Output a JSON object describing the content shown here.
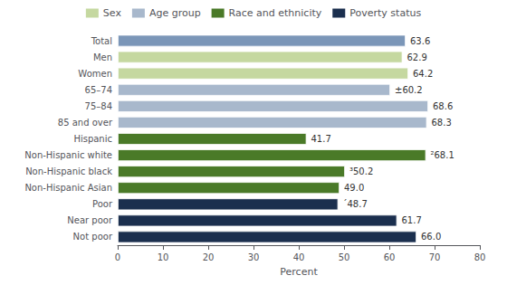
{
  "chart_data": {
    "type": "bar",
    "orientation": "horizontal",
    "categories": [
      "Total",
      "Men",
      "Women",
      "65–74",
      "75–84",
      "85 and over",
      "Hispanic",
      "Non-Hispanic white",
      "Non-Hispanic black",
      "Non-Hispanic Asian",
      "Poor",
      "Near poor",
      "Not poor"
    ],
    "values": [
      63.6,
      62.9,
      64.2,
      60.2,
      68.6,
      68.3,
      41.7,
      68.1,
      50.2,
      49.0,
      48.7,
      61.7,
      66.0
    ],
    "value_labels": [
      "63.6",
      "62.9",
      "64.2",
      "±60.2",
      "68.6",
      "68.3",
      "41.7",
      "²68.1",
      "³50.2",
      "49.0",
      "´48.7",
      "61.7",
      "66.0"
    ],
    "data_labels": true,
    "colors": [
      "#7b96b8",
      "#c5d8a0",
      "#c5d8a0",
      "#a8b8cc",
      "#a8b8cc",
      "#a8b8cc",
      "#4a7a28",
      "#4a7a28",
      "#4a7a28",
      "#4a7a28",
      "#1b2f4e",
      "#1b2f4e",
      "#1b2f4e"
    ],
    "legend_entries": [
      {
        "name": "Sex",
        "color": "#c5d8a0"
      },
      {
        "name": "Age group",
        "color": "#a8b8cc"
      },
      {
        "name": "Race and ethnicity",
        "color": "#4a7a28"
      },
      {
        "name": "Poverty status",
        "color": "#1b2f4e"
      }
    ],
    "legend": "top",
    "xlabel": "Percent",
    "xlim": [
      0,
      80
    ],
    "xticks": [
      0,
      10,
      20,
      30,
      40,
      50,
      60,
      70,
      80
    ],
    "grid": false
  }
}
